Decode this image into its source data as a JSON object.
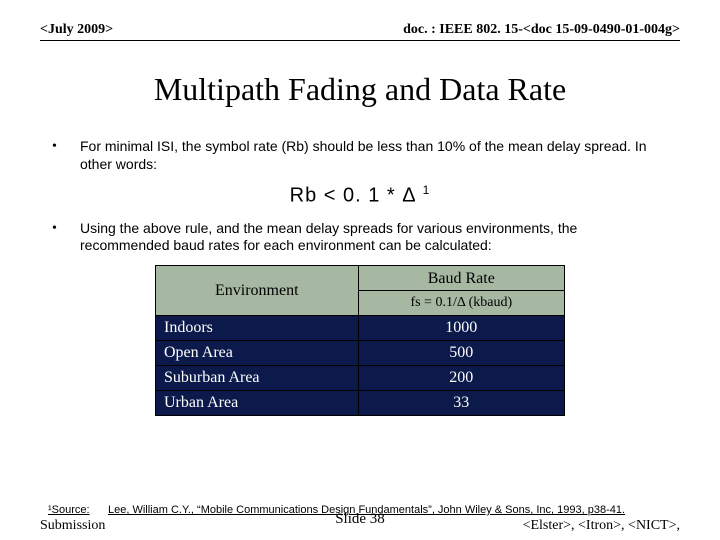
{
  "header": {
    "left": "<July 2009>",
    "right": "doc. : IEEE 802. 15-<doc 15-09-0490-01-004g>"
  },
  "title": "Multipath Fading and Data Rate",
  "bullets": [
    "For minimal ISI, the symbol rate (Rb) should be less than 10% of the mean delay spread. In other words:",
    "Using the above rule, and the mean delay spreads for various environments, the recommended baud rates for each environment can be calculated:"
  ],
  "formula_main": "Rb < 0. 1 * Δ",
  "formula_sup": "1",
  "table": {
    "h1": "Environment",
    "h2": "Baud Rate",
    "sub2": "fs = 0.1/Δ (kbaud)",
    "rows": [
      {
        "env": "Indoors",
        "rate": "1000"
      },
      {
        "env": "Open Area",
        "rate": "500"
      },
      {
        "env": "Suburban Area",
        "rate": "200"
      },
      {
        "env": "Urban Area",
        "rate": "33"
      }
    ]
  },
  "source": {
    "label": "¹Source:",
    "text": "Lee, William C.Y., “Mobile Communications Design Fundamentals”, John Wiley & Sons, Inc, 1993, p38-41."
  },
  "footer": {
    "left": "Submission",
    "center": "Slide 38",
    "right": "<Elster>, <Itron>, <NICT>,"
  }
}
